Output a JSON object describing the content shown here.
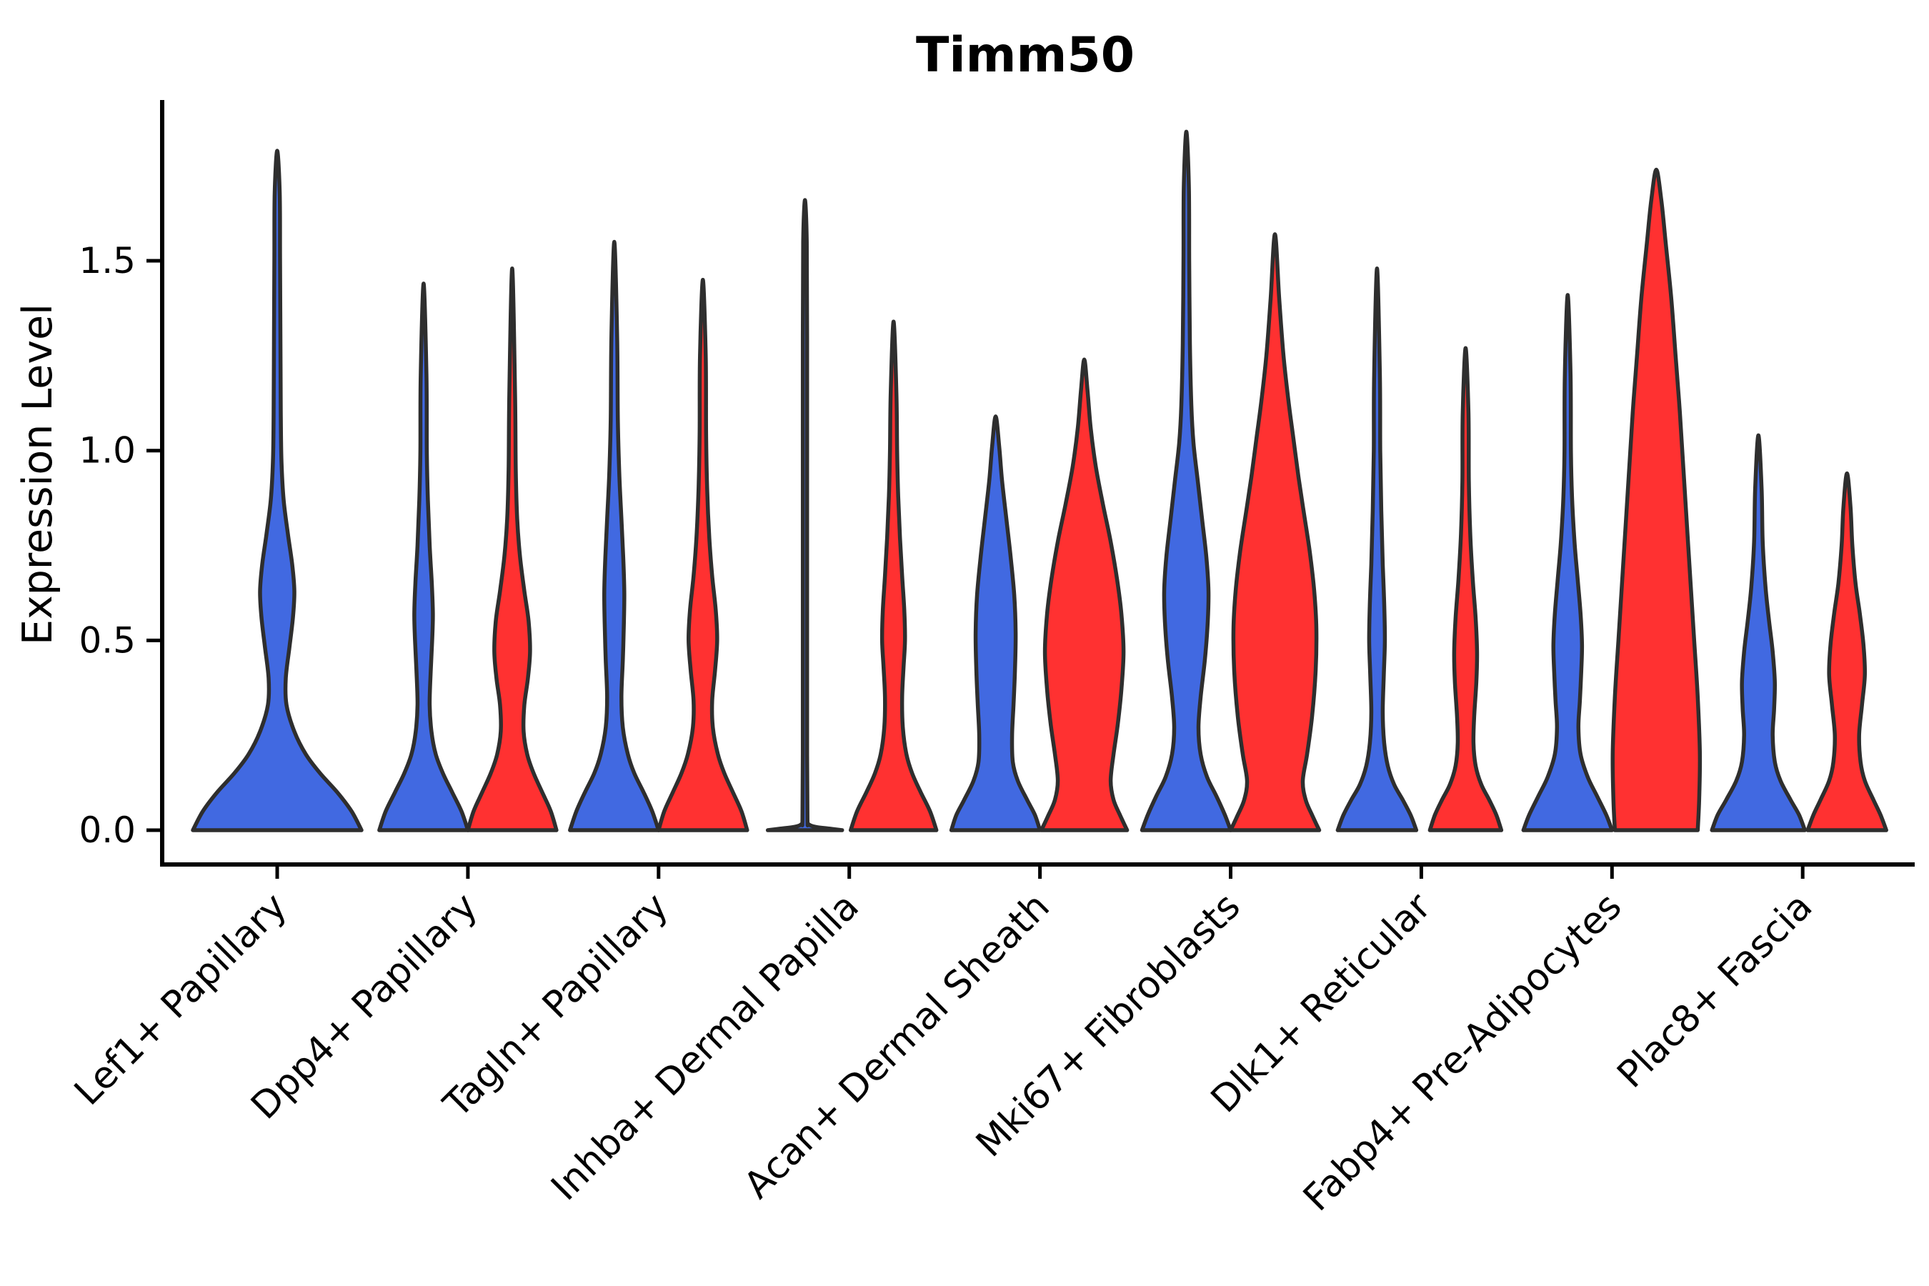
{
  "title": "Timm50",
  "y_axis": {
    "label": "Expression Level",
    "ticks": [
      "0.0",
      "0.5",
      "1.0",
      "1.5"
    ],
    "tick_values": [
      0.0,
      0.5,
      1.0,
      1.5
    ]
  },
  "colors": {
    "blue": "#4169e1",
    "red": "#ff3131",
    "outline": "#2e2e2e",
    "axis": "#000000"
  },
  "chart_data": {
    "type": "violin",
    "title": "Timm50",
    "ylabel": "Expression Level",
    "ylim": [
      0,
      1.9
    ],
    "yticks": [
      0.0,
      0.5,
      1.0,
      1.5
    ],
    "grid": false,
    "legend": "none",
    "categories": [
      "Lef1+ Papillary",
      "Dpp4+ Papillary",
      "Tagln+ Papillary",
      "Inhba+ Dermal Papilla",
      "Acan+ Dermal Sheath",
      "Mki67+ Fibroblasts",
      "Dlk1+ Reticular",
      "Fabp4+ Pre-Adipocytes",
      "Plac8+ Fascia"
    ],
    "groups": [
      "blue",
      "red"
    ],
    "violins": [
      {
        "category": "Lef1+ Papillary",
        "group": "blue",
        "single": true,
        "max_expression": 1.79,
        "profile": [
          [
            0,
            118
          ],
          [
            0.05,
            104
          ],
          [
            0.1,
            84
          ],
          [
            0.15,
            60
          ],
          [
            0.2,
            40
          ],
          [
            0.26,
            24
          ],
          [
            0.33,
            13
          ],
          [
            0.4,
            12
          ],
          [
            0.48,
            17
          ],
          [
            0.56,
            22
          ],
          [
            0.63,
            24
          ],
          [
            0.7,
            21
          ],
          [
            0.78,
            15
          ],
          [
            0.87,
            9
          ],
          [
            0.97,
            6
          ],
          [
            1.1,
            5
          ],
          [
            1.3,
            4.5
          ],
          [
            1.5,
            4
          ],
          [
            1.68,
            3.5
          ],
          [
            1.79,
            0
          ]
        ]
      },
      {
        "category": "Dpp4+ Papillary",
        "group": "blue",
        "single": false,
        "max_expression": 1.44,
        "profile": [
          [
            0,
            62
          ],
          [
            0.05,
            53
          ],
          [
            0.1,
            40
          ],
          [
            0.15,
            27
          ],
          [
            0.2,
            17
          ],
          [
            0.26,
            11
          ],
          [
            0.33,
            8.5
          ],
          [
            0.42,
            10
          ],
          [
            0.5,
            12
          ],
          [
            0.57,
            13
          ],
          [
            0.65,
            11.5
          ],
          [
            0.75,
            8.5
          ],
          [
            0.87,
            6
          ],
          [
            1.0,
            4.5
          ],
          [
            1.2,
            4
          ],
          [
            1.44,
            0
          ]
        ]
      },
      {
        "category": "Dpp4+ Papillary",
        "group": "red",
        "single": false,
        "max_expression": 1.48,
        "profile": [
          [
            0,
            62
          ],
          [
            0.05,
            54
          ],
          [
            0.1,
            42
          ],
          [
            0.15,
            30
          ],
          [
            0.2,
            21
          ],
          [
            0.26,
            16
          ],
          [
            0.33,
            17
          ],
          [
            0.4,
            22
          ],
          [
            0.47,
            25
          ],
          [
            0.55,
            23
          ],
          [
            0.63,
            17
          ],
          [
            0.72,
            11
          ],
          [
            0.82,
            7
          ],
          [
            0.95,
            5
          ],
          [
            1.15,
            4
          ],
          [
            1.48,
            0
          ]
        ]
      },
      {
        "category": "Tagln+ Papillary",
        "group": "blue",
        "single": false,
        "max_expression": 1.55,
        "profile": [
          [
            0,
            62
          ],
          [
            0.05,
            53
          ],
          [
            0.1,
            41
          ],
          [
            0.15,
            28
          ],
          [
            0.2,
            19
          ],
          [
            0.27,
            12
          ],
          [
            0.35,
            10
          ],
          [
            0.45,
            12
          ],
          [
            0.55,
            13.5
          ],
          [
            0.63,
            14
          ],
          [
            0.72,
            12.5
          ],
          [
            0.82,
            10
          ],
          [
            0.94,
            7
          ],
          [
            1.08,
            5
          ],
          [
            1.3,
            4
          ],
          [
            1.55,
            0
          ]
        ]
      },
      {
        "category": "Tagln+ Papillary",
        "group": "red",
        "single": false,
        "max_expression": 1.45,
        "profile": [
          [
            0,
            62
          ],
          [
            0.05,
            54
          ],
          [
            0.1,
            42
          ],
          [
            0.15,
            30
          ],
          [
            0.2,
            21
          ],
          [
            0.27,
            14
          ],
          [
            0.34,
            13
          ],
          [
            0.42,
            17
          ],
          [
            0.5,
            20
          ],
          [
            0.58,
            18
          ],
          [
            0.67,
            13
          ],
          [
            0.77,
            9
          ],
          [
            0.9,
            6
          ],
          [
            1.05,
            4.5
          ],
          [
            1.25,
            4
          ],
          [
            1.45,
            0
          ]
        ]
      },
      {
        "category": "Inhba+ Dermal Papilla",
        "group": "blue",
        "single": false,
        "max_expression": 1.66,
        "profile": [
          [
            0,
            52
          ],
          [
            0.004,
            35
          ],
          [
            0.009,
            14
          ],
          [
            0.016,
            5
          ],
          [
            0.03,
            3.5
          ],
          [
            0.2,
            3
          ],
          [
            0.5,
            3
          ],
          [
            0.9,
            3
          ],
          [
            1.3,
            3
          ],
          [
            1.55,
            2.5
          ],
          [
            1.66,
            0
          ]
        ]
      },
      {
        "category": "Inhba+ Dermal Papilla",
        "group": "red",
        "single": false,
        "max_expression": 1.34,
        "profile": [
          [
            0,
            60
          ],
          [
            0.05,
            51
          ],
          [
            0.1,
            38
          ],
          [
            0.15,
            26
          ],
          [
            0.2,
            18
          ],
          [
            0.27,
            13
          ],
          [
            0.35,
            12
          ],
          [
            0.43,
            14
          ],
          [
            0.5,
            16
          ],
          [
            0.58,
            15
          ],
          [
            0.67,
            12
          ],
          [
            0.77,
            9
          ],
          [
            0.88,
            6.5
          ],
          [
            1.0,
            5
          ],
          [
            1.15,
            4
          ],
          [
            1.34,
            0
          ]
        ]
      },
      {
        "category": "Acan+ Dermal Sheath",
        "group": "blue",
        "single": false,
        "max_expression": 1.09,
        "profile": [
          [
            0,
            62
          ],
          [
            0.04,
            55
          ],
          [
            0.08,
            44
          ],
          [
            0.13,
            31
          ],
          [
            0.18,
            24
          ],
          [
            0.25,
            23
          ],
          [
            0.33,
            25
          ],
          [
            0.42,
            27
          ],
          [
            0.52,
            28
          ],
          [
            0.62,
            26
          ],
          [
            0.72,
            21
          ],
          [
            0.82,
            15
          ],
          [
            0.92,
            9
          ],
          [
            1.01,
            5
          ],
          [
            1.09,
            0
          ]
        ]
      },
      {
        "category": "Acan+ Dermal Sheath",
        "group": "red",
        "single": false,
        "max_expression": 1.24,
        "profile": [
          [
            0,
            60
          ],
          [
            0.04,
            50
          ],
          [
            0.08,
            41
          ],
          [
            0.13,
            37
          ],
          [
            0.2,
            41
          ],
          [
            0.28,
            47
          ],
          [
            0.37,
            52
          ],
          [
            0.47,
            55
          ],
          [
            0.57,
            52
          ],
          [
            0.66,
            46
          ],
          [
            0.76,
            37
          ],
          [
            0.86,
            26
          ],
          [
            0.96,
            16
          ],
          [
            1.06,
            9
          ],
          [
            1.16,
            4.5
          ],
          [
            1.24,
            0
          ]
        ]
      },
      {
        "category": "Mki67+ Fibroblasts",
        "group": "blue",
        "single": false,
        "max_expression": 1.84,
        "profile": [
          [
            0,
            62
          ],
          [
            0.04,
            54
          ],
          [
            0.09,
            42
          ],
          [
            0.14,
            29
          ],
          [
            0.2,
            20
          ],
          [
            0.27,
            17
          ],
          [
            0.35,
            20
          ],
          [
            0.45,
            26
          ],
          [
            0.55,
            30
          ],
          [
            0.63,
            31
          ],
          [
            0.72,
            28
          ],
          [
            0.82,
            22
          ],
          [
            0.92,
            16
          ],
          [
            1.02,
            10
          ],
          [
            1.12,
            7
          ],
          [
            1.28,
            5
          ],
          [
            1.5,
            4
          ],
          [
            1.7,
            3.5
          ],
          [
            1.84,
            0
          ]
        ]
      },
      {
        "category": "Mki67+ Fibroblasts",
        "group": "red",
        "single": false,
        "max_expression": 1.57,
        "profile": [
          [
            0,
            62
          ],
          [
            0.04,
            52
          ],
          [
            0.08,
            43
          ],
          [
            0.13,
            39
          ],
          [
            0.2,
            45
          ],
          [
            0.3,
            52
          ],
          [
            0.42,
            57
          ],
          [
            0.53,
            58
          ],
          [
            0.63,
            55
          ],
          [
            0.73,
            49
          ],
          [
            0.83,
            41
          ],
          [
            0.93,
            33
          ],
          [
            1.03,
            26
          ],
          [
            1.13,
            19
          ],
          [
            1.25,
            12
          ],
          [
            1.4,
            6
          ],
          [
            1.57,
            0
          ]
        ]
      },
      {
        "category": "Dlk1+ Reticular",
        "group": "blue",
        "single": false,
        "max_expression": 1.48,
        "profile": [
          [
            0,
            55
          ],
          [
            0.04,
            47
          ],
          [
            0.08,
            36
          ],
          [
            0.12,
            24
          ],
          [
            0.17,
            15
          ],
          [
            0.23,
            10
          ],
          [
            0.31,
            8
          ],
          [
            0.41,
            9.5
          ],
          [
            0.5,
            11
          ],
          [
            0.6,
            10
          ],
          [
            0.7,
            8
          ],
          [
            0.84,
            6
          ],
          [
            1.0,
            4.5
          ],
          [
            1.2,
            4
          ],
          [
            1.48,
            0
          ]
        ]
      },
      {
        "category": "Dlk1+ Reticular",
        "group": "red",
        "single": false,
        "max_expression": 1.27,
        "profile": [
          [
            0,
            50
          ],
          [
            0.04,
            43
          ],
          [
            0.08,
            33
          ],
          [
            0.12,
            22
          ],
          [
            0.17,
            14
          ],
          [
            0.23,
            11
          ],
          [
            0.3,
            12
          ],
          [
            0.39,
            15
          ],
          [
            0.47,
            16
          ],
          [
            0.56,
            14
          ],
          [
            0.66,
            10
          ],
          [
            0.78,
            6.5
          ],
          [
            0.92,
            4.5
          ],
          [
            1.1,
            4
          ],
          [
            1.27,
            0
          ]
        ]
      },
      {
        "category": "Fabp4+ Pre-Adipocytes",
        "group": "blue",
        "single": false,
        "max_expression": 1.41,
        "profile": [
          [
            0,
            62
          ],
          [
            0.04,
            54
          ],
          [
            0.09,
            41
          ],
          [
            0.14,
            28
          ],
          [
            0.2,
            18
          ],
          [
            0.27,
            15
          ],
          [
            0.34,
            17
          ],
          [
            0.42,
            19
          ],
          [
            0.49,
            20
          ],
          [
            0.57,
            18
          ],
          [
            0.66,
            14
          ],
          [
            0.76,
            9.5
          ],
          [
            0.88,
            6
          ],
          [
            1.0,
            4.5
          ],
          [
            1.2,
            4
          ],
          [
            1.41,
            0
          ]
        ]
      },
      {
        "category": "Fabp4+ Pre-Adipocytes",
        "group": "red",
        "single": false,
        "max_expression": 1.74,
        "profile": [
          [
            0,
            58
          ],
          [
            0.08,
            60
          ],
          [
            0.2,
            61
          ],
          [
            0.35,
            58
          ],
          [
            0.5,
            53
          ],
          [
            0.65,
            48
          ],
          [
            0.8,
            43
          ],
          [
            0.95,
            38
          ],
          [
            1.1,
            33
          ],
          [
            1.25,
            27
          ],
          [
            1.4,
            21
          ],
          [
            1.55,
            13
          ],
          [
            1.66,
            7
          ],
          [
            1.74,
            0
          ]
        ]
      },
      {
        "category": "Plac8+ Fascia",
        "group": "blue",
        "single": false,
        "max_expression": 1.04,
        "profile": [
          [
            0,
            65
          ],
          [
            0.04,
            57
          ],
          [
            0.08,
            45
          ],
          [
            0.13,
            31
          ],
          [
            0.18,
            23
          ],
          [
            0.25,
            20
          ],
          [
            0.32,
            22
          ],
          [
            0.39,
            23
          ],
          [
            0.47,
            20
          ],
          [
            0.55,
            15
          ],
          [
            0.64,
            10
          ],
          [
            0.76,
            6
          ],
          [
            0.9,
            4.5
          ],
          [
            1.04,
            0
          ]
        ]
      },
      {
        "category": "Plac8+ Fascia",
        "group": "red",
        "single": false,
        "max_expression": 0.94,
        "profile": [
          [
            0,
            55
          ],
          [
            0.04,
            47
          ],
          [
            0.08,
            37
          ],
          [
            0.13,
            25
          ],
          [
            0.18,
            19
          ],
          [
            0.25,
            17
          ],
          [
            0.33,
            21
          ],
          [
            0.41,
            25
          ],
          [
            0.49,
            23
          ],
          [
            0.57,
            18
          ],
          [
            0.65,
            12
          ],
          [
            0.75,
            7.5
          ],
          [
            0.85,
            5
          ],
          [
            0.94,
            0
          ]
        ]
      }
    ]
  }
}
